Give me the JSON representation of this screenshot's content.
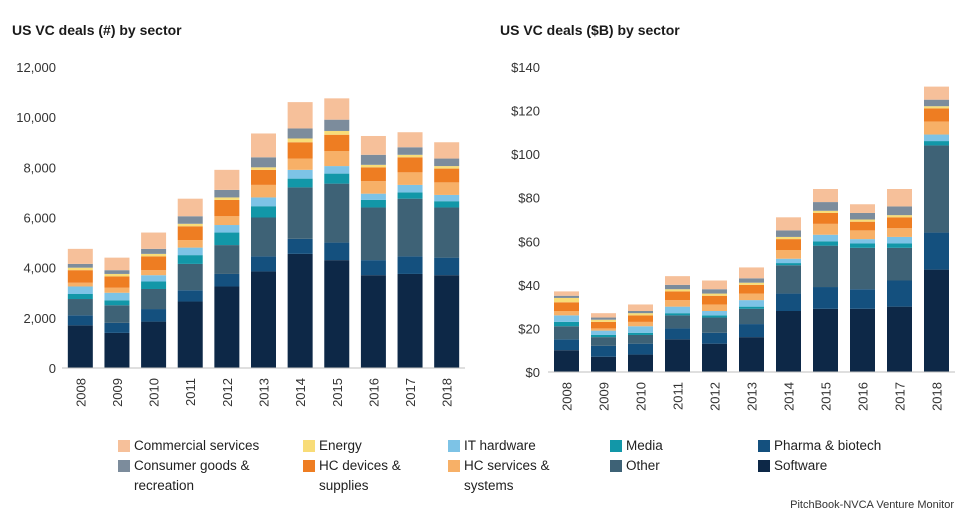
{
  "chart_data": [
    {
      "type": "bar",
      "stacked": true,
      "title": "US VC deals (#) by sector",
      "xlabel": "",
      "ylabel": "",
      "ylim": [
        0,
        12000
      ],
      "yticks": [
        "0",
        "2,000",
        "4,000",
        "6,000",
        "8,000",
        "10,000",
        "12,000"
      ],
      "ytick_values": [
        0,
        2000,
        4000,
        6000,
        8000,
        10000,
        12000
      ],
      "categories": [
        "2008",
        "2009",
        "2010",
        "2011",
        "2012",
        "2013",
        "2014",
        "2015",
        "2016",
        "2017",
        "2018"
      ],
      "series": [
        {
          "name": "Software",
          "values": [
            1700,
            1400,
            1850,
            2650,
            3250,
            3850,
            4550,
            4300,
            3700,
            3750,
            3700
          ]
        },
        {
          "name": "Pharma & biotech",
          "values": [
            400,
            400,
            500,
            450,
            500,
            600,
            600,
            700,
            600,
            700,
            700
          ]
        },
        {
          "name": "Other",
          "values": [
            650,
            700,
            800,
            1050,
            1150,
            1550,
            2050,
            2350,
            2100,
            2300,
            2000
          ]
        },
        {
          "name": "Media",
          "values": [
            200,
            200,
            300,
            350,
            500,
            450,
            350,
            400,
            300,
            250,
            250
          ]
        },
        {
          "name": "IT hardware",
          "values": [
            300,
            300,
            250,
            300,
            300,
            350,
            350,
            300,
            250,
            300,
            250
          ]
        },
        {
          "name": "HC services & systems",
          "values": [
            150,
            200,
            200,
            300,
            350,
            500,
            450,
            600,
            500,
            500,
            500
          ]
        },
        {
          "name": "HC devices & supplies",
          "values": [
            500,
            450,
            550,
            550,
            650,
            600,
            650,
            650,
            550,
            600,
            550
          ]
        },
        {
          "name": "Energy",
          "values": [
            100,
            100,
            100,
            100,
            100,
            100,
            150,
            150,
            100,
            100,
            100
          ]
        },
        {
          "name": "Consumer goods & recreation",
          "values": [
            150,
            150,
            200,
            300,
            300,
            400,
            400,
            450,
            400,
            300,
            300
          ]
        },
        {
          "name": "Commercial services",
          "values": [
            600,
            500,
            650,
            700,
            800,
            950,
            1050,
            850,
            750,
            600,
            650
          ]
        }
      ]
    },
    {
      "type": "bar",
      "stacked": true,
      "title": "US VC deals ($B) by sector",
      "xlabel": "",
      "ylabel": "",
      "ylim": [
        0,
        140
      ],
      "yticks": [
        "$0",
        "$20",
        "$40",
        "$60",
        "$80",
        "$100",
        "$120",
        "$140"
      ],
      "ytick_values": [
        0,
        20,
        40,
        60,
        80,
        100,
        120,
        140
      ],
      "categories": [
        "2008",
        "2009",
        "2010",
        "2011",
        "2012",
        "2013",
        "2014",
        "2015",
        "2016",
        "2017",
        "2018"
      ],
      "series": [
        {
          "name": "Software",
          "values": [
            10,
            7,
            8,
            15,
            13,
            16,
            28,
            29,
            29,
            30,
            47
          ]
        },
        {
          "name": "Pharma & biotech",
          "values": [
            5,
            5,
            5,
            5,
            5,
            6,
            8,
            10,
            9,
            12,
            17
          ]
        },
        {
          "name": "Other",
          "values": [
            6,
            4,
            4,
            6,
            7,
            7,
            13,
            19,
            19,
            15,
            40
          ]
        },
        {
          "name": "Media",
          "values": [
            2,
            1,
            1,
            1,
            1,
            1,
            1,
            2,
            2,
            2,
            2
          ]
        },
        {
          "name": "IT hardware",
          "values": [
            3,
            2,
            3,
            3,
            2,
            3,
            2,
            3,
            2,
            3,
            3
          ]
        },
        {
          "name": "HC services & systems",
          "values": [
            2,
            1,
            2,
            3,
            3,
            3,
            4,
            5,
            4,
            4,
            6
          ]
        },
        {
          "name": "HC devices & supplies",
          "values": [
            4,
            3,
            3,
            4,
            4,
            4,
            5,
            5,
            4,
            5,
            6
          ]
        },
        {
          "name": "Energy",
          "values": [
            2,
            1,
            1,
            1,
            1,
            1,
            1,
            1,
            1,
            1,
            1
          ]
        },
        {
          "name": "Consumer goods & recreation",
          "values": [
            1,
            1,
            1,
            2,
            2,
            2,
            3,
            4,
            3,
            4,
            3
          ]
        },
        {
          "name": "Commercial services",
          "values": [
            2,
            2,
            3,
            4,
            4,
            5,
            6,
            6,
            4,
            8,
            6
          ]
        }
      ]
    }
  ],
  "colors": {
    "Software": "#0d2847",
    "Pharma & biotech": "#14507e",
    "Other": "#3e6276",
    "Media": "#1297a8",
    "IT hardware": "#7dc3e6",
    "HC services & systems": "#f7b067",
    "HC devices & supplies": "#ee7d22",
    "Energy": "#f8dc78",
    "Consumer goods & recreation": "#7c8c9c",
    "Commercial services": "#f6c09a"
  },
  "legend": [
    {
      "name": "Commercial services",
      "label": "Commercial services"
    },
    {
      "name": "Energy",
      "label": "Energy"
    },
    {
      "name": "IT hardware",
      "label": "IT hardware"
    },
    {
      "name": "Media",
      "label": "Media"
    },
    {
      "name": "Pharma & biotech",
      "label": "Pharma & biotech"
    },
    {
      "name": "Consumer goods & recreation",
      "label": "Consumer goods &\nrecreation"
    },
    {
      "name": "HC devices & supplies",
      "label": "HC devices &\nsupplies"
    },
    {
      "name": "HC services & systems",
      "label": "HC services &\nsystems"
    },
    {
      "name": "Other",
      "label": "Other"
    },
    {
      "name": "Software",
      "label": "Software"
    }
  ],
  "source": "PitchBook-NVCA Venture Monitor"
}
